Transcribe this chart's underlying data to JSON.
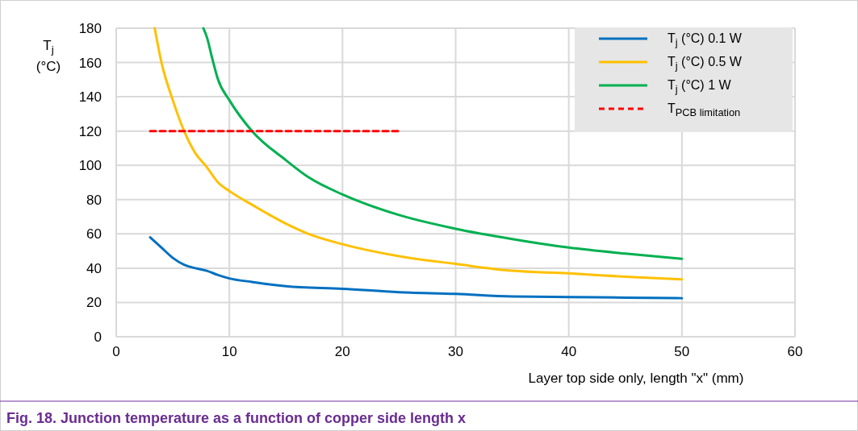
{
  "chart_data": {
    "type": "line",
    "title": "Fig. 18.  Junction temperature as a function of copper side length x",
    "xlabel": "Layer top side only, length \"x\"  (mm)",
    "ylabel": "T$_{j}$ (°C)",
    "xlim": [
      0,
      60
    ],
    "xticks": [
      0,
      10,
      20,
      30,
      40,
      50,
      60
    ],
    "ylim": [
      0,
      180
    ],
    "yticks": [
      0,
      20,
      40,
      60,
      80,
      100,
      120,
      140,
      160,
      180
    ],
    "grid": true,
    "legend": "top right",
    "line_style": "solid",
    "marker": "none",
    "series": [
      {
        "name": "T$_{j}$ (°C) 0.1 W",
        "color": "#0070c0",
        "x": [
          3,
          4,
          5,
          6,
          7,
          8,
          9,
          10,
          12,
          15,
          20,
          25,
          30,
          35,
          40,
          45,
          50
        ],
        "values": [
          58,
          52,
          46,
          42,
          40,
          38.5,
          36,
          34,
          32,
          29.5,
          28,
          26,
          25,
          23.5,
          23.2,
          22.8,
          22.5
        ]
      },
      {
        "name": "T$_{j}$ (°C) 0.5 W",
        "color": "#ffc000",
        "x": [
          3.4,
          4,
          5,
          6,
          7,
          8,
          9,
          10,
          12,
          15,
          17,
          20,
          25,
          30,
          35,
          40,
          45,
          50
        ],
        "values": [
          180,
          160,
          138,
          120,
          107,
          99,
          90,
          85,
          77,
          66,
          60,
          54,
          47,
          42.5,
          38.5,
          37,
          35,
          33.5
        ]
      },
      {
        "name": "T$_{j}$ (°C) 1 W",
        "color": "#00b050",
        "x": [
          7.7,
          8,
          8.5,
          9,
          10,
          12,
          15,
          17,
          20,
          25,
          30,
          35,
          40,
          45,
          50
        ],
        "values": [
          180,
          175,
          162,
          150,
          138,
          120,
          103,
          93,
          83,
          71,
          63,
          57,
          52,
          48.5,
          45.5
        ]
      },
      {
        "name": "T$_{PCB limitation}$",
        "color": "#ff0000",
        "line_style": "dashed",
        "x": [
          3,
          25
        ],
        "values": [
          120,
          120
        ]
      }
    ]
  }
}
